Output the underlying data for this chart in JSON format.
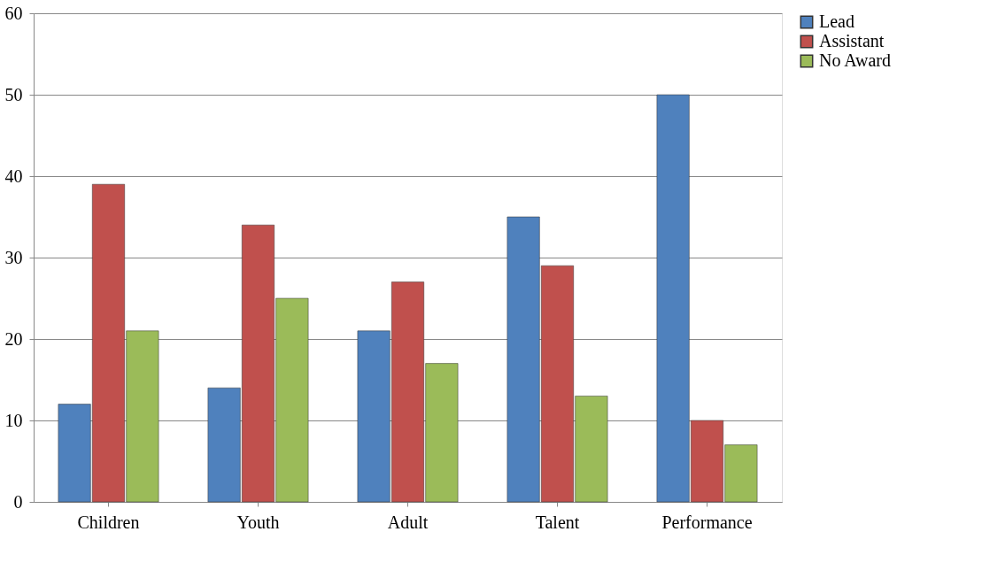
{
  "chart_data": {
    "type": "bar",
    "categories": [
      "Children",
      "Youth",
      "Adult",
      "Talent",
      "Performance"
    ],
    "series": [
      {
        "name": "Lead",
        "color": "#4f81bd",
        "values": [
          12,
          14,
          21,
          35,
          50
        ]
      },
      {
        "name": "Assistant",
        "color": "#c0504d",
        "values": [
          39,
          34,
          27,
          29,
          10
        ]
      },
      {
        "name": "No Award",
        "color": "#9bbb59",
        "values": [
          21,
          25,
          17,
          13,
          7
        ]
      }
    ],
    "ylim": [
      0,
      60
    ],
    "yticks": [
      0,
      10,
      20,
      30,
      40,
      50,
      60
    ],
    "grid": "y",
    "legend": "right"
  }
}
